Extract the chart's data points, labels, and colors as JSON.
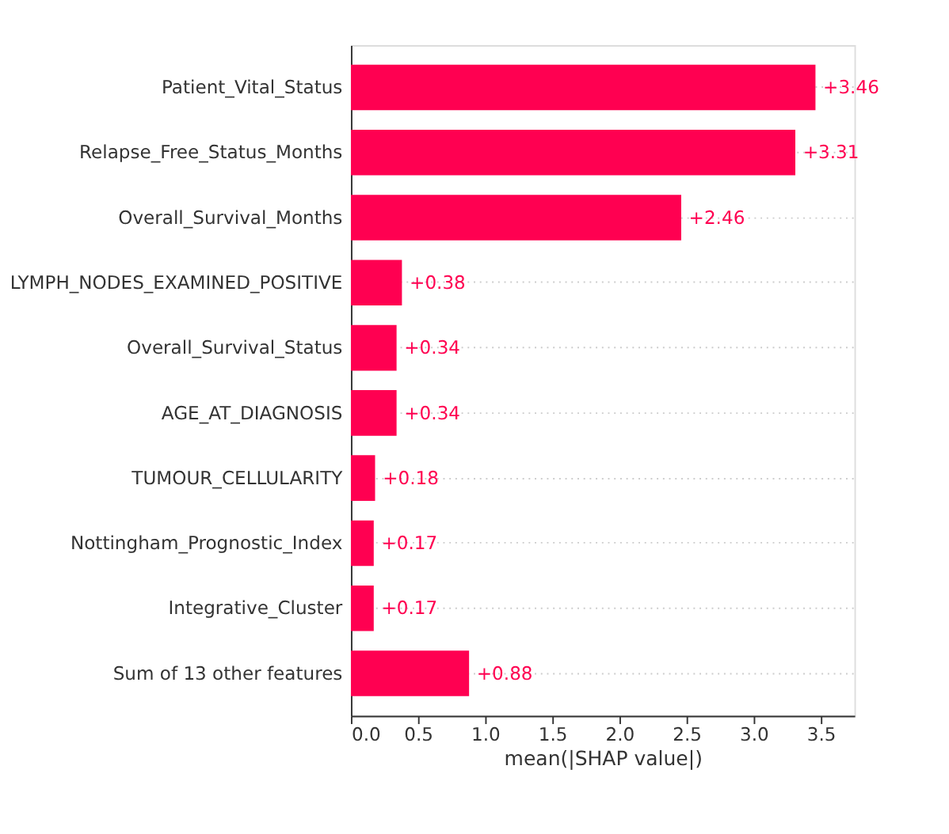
{
  "chart_data": {
    "type": "bar",
    "orientation": "horizontal",
    "xlabel": "mean(|SHAP value|)",
    "categories": [
      "Patient_Vital_Status",
      "Relapse_Free_Status_Months",
      "Overall_Survival_Months",
      "LYMPH_NODES_EXAMINED_POSITIVE",
      "Overall_Survival_Status",
      "AGE_AT_DIAGNOSIS",
      "TUMOUR_CELLULARITY",
      "Nottingham_Prognostic_Index",
      "Integrative_Cluster",
      "Sum of 13 other features"
    ],
    "values": [
      3.46,
      3.31,
      2.46,
      0.38,
      0.34,
      0.34,
      0.18,
      0.17,
      0.17,
      0.88
    ],
    "value_labels": [
      "+3.46",
      "+3.31",
      "+2.46",
      "+0.38",
      "+0.34",
      "+0.34",
      "+0.18",
      "+0.17",
      "+0.17",
      "+0.88"
    ],
    "color": "#ff0051",
    "xlim": [
      0,
      3.75
    ],
    "xticks": [
      {
        "value": 0,
        "label": "0.0"
      },
      0.5,
      {
        "value": 1,
        "label": "1.0"
      },
      1.5,
      {
        "value": 2,
        "label": "2.0"
      },
      2.5,
      {
        "value": 3,
        "label": "3.0"
      },
      3.5
    ],
    "grid": "y",
    "line_style": "dotted"
  }
}
